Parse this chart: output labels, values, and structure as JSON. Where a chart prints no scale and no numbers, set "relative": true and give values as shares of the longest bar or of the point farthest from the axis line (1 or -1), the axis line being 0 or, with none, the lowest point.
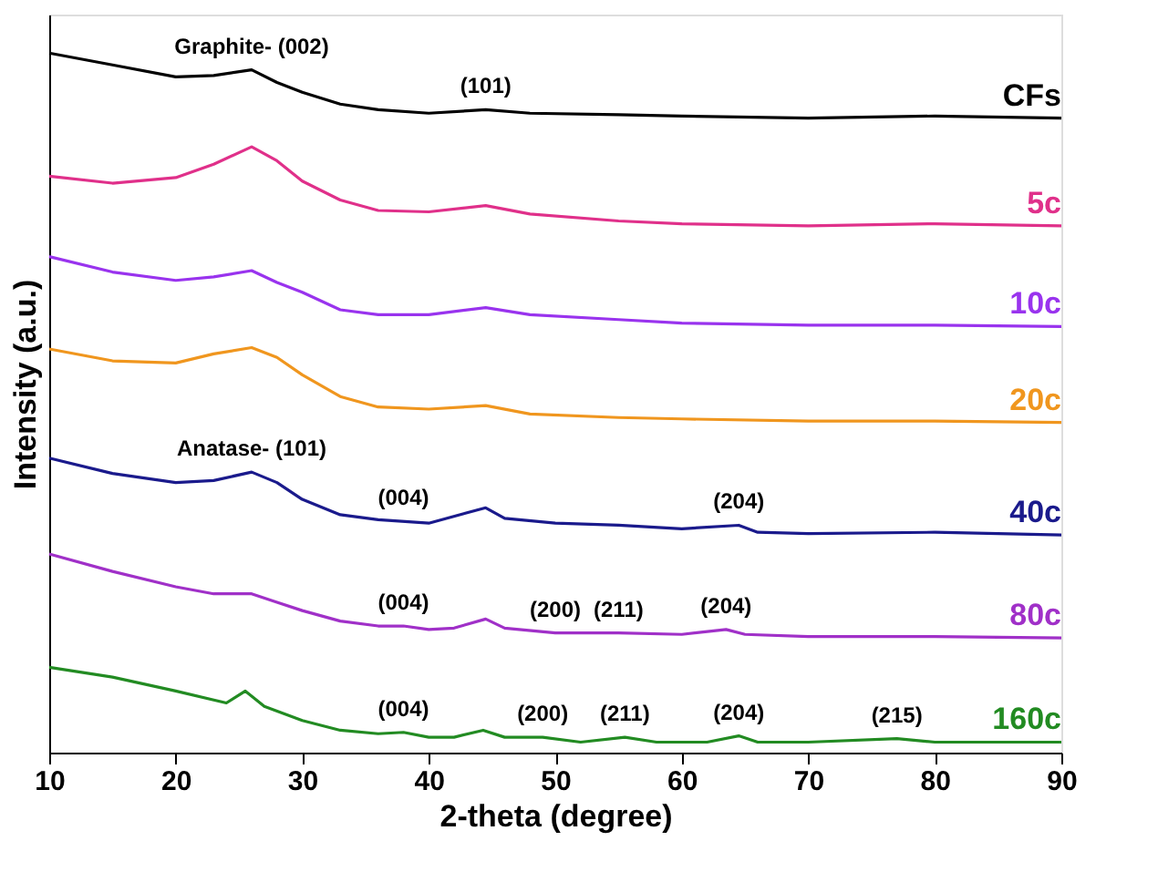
{
  "chart_data": {
    "type": "line",
    "relative": true,
    "xlabel": "2-theta (degree)",
    "ylabel": "Intensity (a.u.)",
    "xlim": [
      10,
      90
    ],
    "xticks": [
      10,
      20,
      30,
      40,
      50,
      60,
      70,
      80,
      90
    ],
    "tick_labels": "x",
    "grid": false,
    "legend": false,
    "marker": "none",
    "line_style": "solid",
    "series": [
      {
        "name": "CFs",
        "color": "#000000",
        "x": [
          10,
          15,
          20,
          23,
          26,
          28,
          30,
          33,
          36,
          40,
          44.5,
          48,
          55,
          60,
          70,
          80,
          90
        ],
        "values": [
          1.0,
          0.983,
          0.966,
          0.968,
          0.976,
          0.958,
          0.944,
          0.927,
          0.919,
          0.914,
          0.919,
          0.914,
          0.912,
          0.91,
          0.907,
          0.91,
          0.907
        ]
      },
      {
        "name": "5c",
        "color": "#e0308a",
        "x": [
          10,
          15,
          20,
          23,
          26,
          28,
          30,
          33,
          36,
          40,
          44.5,
          48,
          55,
          60,
          70,
          80,
          90
        ],
        "values": [
          0.824,
          0.814,
          0.822,
          0.841,
          0.866,
          0.846,
          0.817,
          0.79,
          0.775,
          0.773,
          0.782,
          0.77,
          0.76,
          0.756,
          0.753,
          0.756,
          0.753
        ]
      },
      {
        "name": "10c",
        "color": "#9933ee",
        "x": [
          10,
          15,
          20,
          23,
          26,
          28,
          30,
          33,
          36,
          40,
          44.5,
          48,
          55,
          60,
          70,
          80,
          90
        ],
        "values": [
          0.709,
          0.687,
          0.675,
          0.68,
          0.689,
          0.672,
          0.658,
          0.633,
          0.626,
          0.626,
          0.636,
          0.626,
          0.619,
          0.614,
          0.611,
          0.611,
          0.609
        ]
      },
      {
        "name": "20c",
        "color": "#f0961e",
        "x": [
          10,
          15,
          20,
          23,
          26,
          28,
          30,
          33,
          36,
          40,
          44.5,
          48,
          55,
          60,
          70,
          80,
          90
        ],
        "values": [
          0.577,
          0.56,
          0.557,
          0.57,
          0.579,
          0.565,
          0.54,
          0.509,
          0.494,
          0.491,
          0.496,
          0.484,
          0.479,
          0.477,
          0.474,
          0.474,
          0.472
        ]
      },
      {
        "name": "40c",
        "color": "#1a1a8c",
        "x": [
          10,
          15,
          20,
          23,
          26,
          28,
          30,
          33,
          36,
          40,
          44.5,
          46,
          50,
          55,
          60,
          64.5,
          66,
          70,
          80,
          90
        ],
        "values": [
          0.421,
          0.399,
          0.386,
          0.389,
          0.401,
          0.386,
          0.362,
          0.34,
          0.333,
          0.328,
          0.35,
          0.335,
          0.328,
          0.325,
          0.32,
          0.325,
          0.315,
          0.313,
          0.315,
          0.311
        ]
      },
      {
        "name": "80c",
        "color": "#a030c8",
        "x": [
          10,
          15,
          20,
          23,
          26,
          28,
          30,
          33,
          36,
          38,
          40,
          42,
          44.5,
          46,
          50,
          55,
          60,
          63.5,
          65,
          70,
          80,
          90
        ],
        "values": [
          0.284,
          0.259,
          0.237,
          0.227,
          0.227,
          0.215,
          0.203,
          0.188,
          0.181,
          0.181,
          0.176,
          0.178,
          0.191,
          0.178,
          0.171,
          0.171,
          0.169,
          0.176,
          0.169,
          0.166,
          0.166,
          0.164
        ]
      },
      {
        "name": "160c",
        "color": "#228b22",
        "x": [
          10,
          15,
          20,
          24,
          25.5,
          27,
          30,
          33,
          36,
          38,
          40,
          42,
          44.3,
          46,
          49,
          52,
          55.5,
          58,
          62,
          64.5,
          66,
          70,
          77,
          80,
          90
        ],
        "values": [
          0.122,
          0.108,
          0.088,
          0.071,
          0.088,
          0.066,
          0.046,
          0.032,
          0.027,
          0.029,
          0.022,
          0.022,
          0.032,
          0.022,
          0.022,
          0.015,
          0.022,
          0.015,
          0.015,
          0.024,
          0.015,
          0.015,
          0.02,
          0.015,
          0.015
        ]
      }
    ],
    "annotations": [
      {
        "text": "Graphite- (002)",
        "x": 26,
        "y": 0.976
      },
      {
        "text": "(101)",
        "x": 44.5,
        "y": 0.919
      },
      {
        "text": "Anatase- (101)",
        "x": 26,
        "y": 0.401
      },
      {
        "text": "(004)",
        "x": 38,
        "y": 0.331
      },
      {
        "text": "(204)",
        "x": 64.5,
        "y": 0.325
      },
      {
        "text": "(004)",
        "x": 38,
        "y": 0.181
      },
      {
        "text": "(200)",
        "x": 50,
        "y": 0.171
      },
      {
        "text": "(211)",
        "x": 55,
        "y": 0.171
      },
      {
        "text": "(204)",
        "x": 63.5,
        "y": 0.176
      },
      {
        "text": "(004)",
        "x": 38,
        "y": 0.029
      },
      {
        "text": "(200)",
        "x": 49,
        "y": 0.022
      },
      {
        "text": "(211)",
        "x": 55.5,
        "y": 0.022
      },
      {
        "text": "(204)",
        "x": 64.5,
        "y": 0.024
      },
      {
        "text": "(215)",
        "x": 77,
        "y": 0.02
      }
    ]
  }
}
